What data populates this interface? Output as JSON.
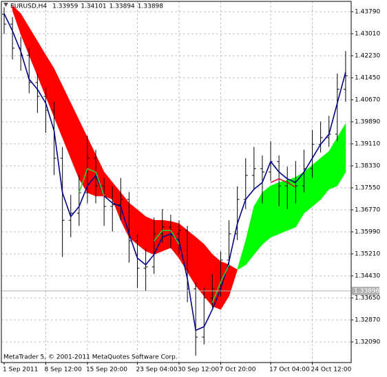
{
  "chart_data": {
    "type": "ohlc",
    "title": "EURUSD,H4",
    "quote": [
      1.33959,
      1.34101,
      1.33894,
      1.33898
    ],
    "current_price": 1.33898,
    "footer": "MetaTrader 5, © 2001-2011 MetaQuotes Software Corp.",
    "categories": [
      "1 Sep 2011",
      null,
      null,
      null,
      null,
      "8 Sep 12:00",
      null,
      null,
      null,
      null,
      "15 Sep 20:00",
      null,
      null,
      null,
      null,
      null,
      "23 Sep 04:00",
      null,
      null,
      null,
      null,
      "30 Sep 12:00",
      null,
      null,
      null,
      null,
      "7 Oct 20:00",
      null,
      null,
      null,
      null,
      null,
      "17 Oct 04:00",
      null,
      null,
      null,
      null,
      "24 Oct 12:00",
      null,
      null,
      null,
      null
    ],
    "open": [
      1.437,
      1.4335,
      1.425,
      1.4225,
      1.4128,
      1.4079,
      1.403,
      1.386,
      1.364,
      1.3665,
      1.3738,
      1.386,
      1.3762,
      1.3689,
      1.3695,
      1.3714,
      1.3567,
      1.347,
      1.3475,
      1.3592,
      1.3616,
      1.3592,
      1.3604,
      1.3397,
      1.3226,
      1.3365,
      1.3397,
      1.3499,
      1.3592,
      1.3714,
      1.3799,
      1.3823,
      1.3811,
      1.3848,
      1.3762,
      1.3774,
      1.3762,
      1.3823,
      1.3909,
      1.3933,
      1.3945,
      1.4104
    ],
    "high": [
      1.4395,
      1.436,
      1.429,
      1.425,
      1.416,
      1.411,
      1.406,
      1.39,
      1.373,
      1.38,
      1.394,
      1.389,
      1.379,
      1.376,
      1.379,
      1.374,
      1.359,
      1.354,
      1.365,
      1.368,
      1.366,
      1.364,
      1.362,
      1.342,
      1.34,
      1.345,
      1.353,
      1.364,
      1.376,
      1.386,
      1.39,
      1.387,
      1.392,
      1.387,
      1.383,
      1.385,
      1.389,
      1.396,
      1.399,
      1.401,
      1.416,
      1.424
    ],
    "low": [
      1.43,
      1.421,
      1.417,
      1.409,
      1.402,
      1.395,
      1.38,
      1.351,
      1.358,
      1.362,
      1.37,
      1.37,
      1.362,
      1.36,
      1.364,
      1.349,
      1.34,
      1.339,
      1.345,
      1.356,
      1.354,
      1.352,
      1.335,
      1.316,
      1.32,
      1.333,
      1.337,
      1.347,
      1.357,
      1.368,
      1.375,
      1.37,
      1.378,
      1.369,
      1.368,
      1.37,
      1.374,
      1.379,
      1.388,
      1.39,
      1.392,
      1.406
    ],
    "close": [
      1.4335,
      1.425,
      1.4225,
      1.4128,
      1.4079,
      1.403,
      1.386,
      1.364,
      1.3665,
      1.3738,
      1.386,
      1.3762,
      1.3689,
      1.3695,
      1.3714,
      1.3567,
      1.347,
      1.3475,
      1.3592,
      1.3616,
      1.3592,
      1.3604,
      1.3397,
      1.3226,
      1.3365,
      1.3397,
      1.3499,
      1.3592,
      1.3714,
      1.3799,
      1.3823,
      1.3811,
      1.3848,
      1.3762,
      1.3774,
      1.3762,
      1.3823,
      1.3909,
      1.3933,
      1.3945,
      1.4104,
      1.4152
    ],
    "bar_color": "#000000",
    "cloud": {
      "line1": [
        null,
        1.4401,
        1.4372,
        1.4323,
        1.4274,
        1.4225,
        1.4177,
        1.4116,
        1.4055,
        1.3994,
        1.3933,
        1.3872,
        1.3811,
        1.3774,
        1.3738,
        1.3701,
        1.3677,
        1.3653,
        1.364,
        1.364,
        1.3636,
        1.3628,
        1.3604,
        1.358,
        1.3555,
        1.3519,
        1.3494,
        1.3482,
        1.3465,
        1.3482,
        1.3519,
        1.3555,
        1.358,
        1.3592,
        1.3604,
        1.3616,
        1.3665,
        1.3689,
        1.3714,
        1.375,
        1.3762,
        1.3811
      ],
      "line2": [
        null,
        1.4384,
        1.4299,
        1.4225,
        1.4152,
        1.4079,
        1.4006,
        1.3933,
        1.386,
        1.3787,
        1.3738,
        1.3726,
        1.3726,
        1.3714,
        1.364,
        1.358,
        1.3555,
        1.3531,
        1.3519,
        1.3531,
        1.3543,
        1.3506,
        1.3458,
        1.3409,
        1.3372,
        1.3336,
        1.3324,
        1.3372,
        1.3465,
        1.3567,
        1.3689,
        1.3738,
        1.3762,
        1.3774,
        1.3782,
        1.3792,
        1.3811,
        1.3835,
        1.386,
        1.3884,
        1.3933,
        1.3982
      ],
      "colors": [
        "#ff0000",
        "#00ff00"
      ]
    },
    "ma": {
      "color": "#00008b",
      "values": [
        1.4372,
        1.4311,
        1.4238,
        1.414,
        1.4104,
        1.4055,
        1.3957,
        1.3738,
        1.3653,
        1.3689,
        1.3762,
        1.3799,
        1.3726,
        1.3701,
        1.3689,
        1.3592,
        1.3506,
        1.3482,
        1.3519,
        1.358,
        1.3592,
        1.3567,
        1.3433,
        1.325,
        1.3263,
        1.3324,
        1.3397,
        1.3494,
        1.3628,
        1.3714,
        1.375,
        1.3774,
        1.3848,
        1.3811,
        1.3787,
        1.3774,
        1.3811,
        1.386,
        1.3909,
        1.3945,
        1.4055,
        1.4165
      ]
    },
    "signal": {
      "values": [
        null,
        null,
        null,
        null,
        null,
        null,
        null,
        null,
        null,
        1.3738,
        1.3823,
        1.3811,
        1.3726,
        null,
        null,
        null,
        null,
        null,
        1.3567,
        1.3604,
        1.3604,
        1.3555,
        null,
        null,
        null,
        1.3348,
        1.3421,
        1.3482,
        null,
        null,
        null,
        null,
        1.3774,
        1.3787,
        1.3774,
        1.3757,
        null,
        null,
        null,
        null,
        null,
        null
      ],
      "colors": [
        null,
        null,
        null,
        null,
        null,
        null,
        null,
        null,
        null,
        "#32cd32",
        "#32cd32",
        "#32cd32",
        "#32cd32",
        null,
        null,
        null,
        null,
        null,
        "#32cd32",
        "#32cd32",
        "#32cd32",
        "#32cd32",
        null,
        null,
        null,
        "#32cd32",
        "#32cd32",
        "#32cd32",
        null,
        null,
        null,
        null,
        "#dc143c",
        "#dc143c",
        "#dc143c",
        "#dc143c",
        null,
        null,
        null,
        null,
        null,
        null
      ]
    },
    "ylim": [
      1.31359,
      1.44156
    ],
    "yticks": [
      {
        "value": 1.4379,
        "label": "1.43790"
      },
      {
        "value": 1.4301,
        "label": "1.43010"
      },
      {
        "value": 1.4223,
        "label": "1.42230"
      },
      {
        "value": 1.4145,
        "label": "1.41450"
      },
      {
        "value": 1.4067,
        "label": "1.40670"
      },
      {
        "value": 1.3989,
        "label": "1.39890"
      },
      {
        "value": 1.3911,
        "label": "1.39110"
      },
      {
        "value": 1.3833,
        "label": "1.38330"
      },
      {
        "value": 1.3755,
        "label": "1.37550"
      },
      {
        "value": 1.3677,
        "label": "1.36770"
      },
      {
        "value": 1.3599,
        "label": "1.35990"
      },
      {
        "value": 1.3521,
        "label": "1.35210"
      },
      {
        "value": 1.3443,
        "label": "1.34430"
      },
      {
        "value": 1.3365,
        "label": "1.33650"
      },
      {
        "value": 1.3287,
        "label": "1.32870"
      },
      {
        "value": 1.3209,
        "label": "1.32090"
      }
    ],
    "grid": true
  }
}
